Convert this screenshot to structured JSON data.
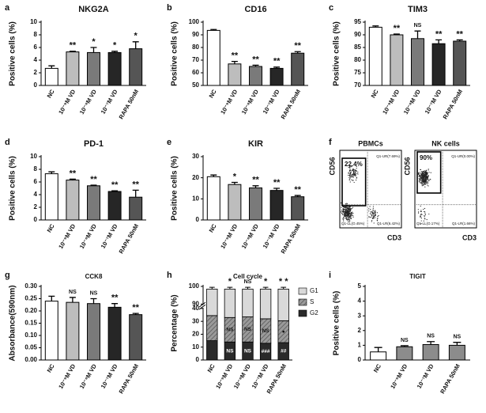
{
  "chart_data": [
    {
      "panel": "a",
      "type": "bar",
      "title": "NKG2A",
      "ylabel": "Positive cells (%)",
      "categories": [
        "NC",
        "10⁻⁹M VD",
        "10⁻⁸M VD",
        "10⁻⁷M VD",
        "RAPA 50nM"
      ],
      "values": [
        2.7,
        5.3,
        5.2,
        5.2,
        5.8
      ],
      "errors": [
        0.4,
        0.1,
        0.8,
        0.2,
        1.1
      ],
      "annotations": [
        null,
        "**",
        "*",
        "*",
        "*"
      ],
      "colors": [
        "#ffffff",
        "#bdbdbd",
        "#7a7a7a",
        "#262626",
        "#555555"
      ],
      "ylim": [
        0,
        10
      ],
      "yticks": [
        0,
        2,
        4,
        6,
        8,
        10
      ]
    },
    {
      "panel": "b",
      "type": "bar",
      "title": "CD16",
      "ylabel": "Positive cells (%)",
      "categories": [
        "NC",
        "10⁻⁹M VD",
        "10⁻⁸M VD",
        "10⁻⁷M VD",
        "RAPA 50nM"
      ],
      "values": [
        93.5,
        67,
        65,
        63.5,
        75.5
      ],
      "errors": [
        0.7,
        2,
        1,
        1,
        1.2
      ],
      "annotations": [
        null,
        "**",
        "**",
        "**",
        "**"
      ],
      "colors": [
        "#ffffff",
        "#bdbdbd",
        "#7a7a7a",
        "#262626",
        "#555555"
      ],
      "ylim": [
        50,
        100
      ],
      "yticks": [
        50,
        60,
        70,
        80,
        90,
        100
      ]
    },
    {
      "panel": "c",
      "type": "bar",
      "title": "TIM3",
      "ylabel": "Positive cells (%)",
      "categories": [
        "NC",
        "10⁻⁹M VD",
        "10⁻⁸M VD",
        "10⁻⁷M VD",
        "RAPA 50nM"
      ],
      "values": [
        93,
        90,
        88.5,
        86.5,
        87.5
      ],
      "errors": [
        0.5,
        0.3,
        3,
        1.5,
        0.5
      ],
      "annotations": [
        null,
        "**",
        "NS",
        "**",
        "**"
      ],
      "colors": [
        "#ffffff",
        "#bdbdbd",
        "#7a7a7a",
        "#262626",
        "#555555"
      ],
      "ylim": [
        70,
        95
      ],
      "yticks": [
        70,
        75,
        80,
        85,
        90,
        95
      ]
    },
    {
      "panel": "d",
      "type": "bar",
      "title": "PD-1",
      "ylabel": "Positive cells (%)",
      "categories": [
        "NC",
        "10⁻⁹M VD",
        "10⁻⁸M VD",
        "10⁻⁷M VD",
        "RAPA 50nM"
      ],
      "values": [
        7.3,
        6.3,
        5.4,
        4.5,
        3.6
      ],
      "errors": [
        0.3,
        0.15,
        0.1,
        0.1,
        1.1
      ],
      "annotations": [
        null,
        "**",
        "**",
        "**",
        "**"
      ],
      "colors": [
        "#ffffff",
        "#bdbdbd",
        "#7a7a7a",
        "#262626",
        "#555555"
      ],
      "ylim": [
        0,
        10
      ],
      "yticks": [
        0,
        2,
        4,
        6,
        8,
        10
      ]
    },
    {
      "panel": "e",
      "type": "bar",
      "title": "KIR",
      "ylabel": "Positive cells (%)",
      "categories": [
        "NC",
        "10⁻⁹M VD",
        "10⁻⁸M VD",
        "10⁻⁷M VD",
        "RAPA 50nM"
      ],
      "values": [
        20.5,
        16.8,
        15.2,
        14,
        11
      ],
      "errors": [
        0.8,
        1,
        1,
        1,
        0.6
      ],
      "annotations": [
        null,
        "*",
        "**",
        "**",
        "**"
      ],
      "colors": [
        "#ffffff",
        "#bdbdbd",
        "#7a7a7a",
        "#262626",
        "#555555"
      ],
      "ylim": [
        0,
        30
      ],
      "yticks": [
        0,
        10,
        20,
        30
      ]
    },
    {
      "panel": "g",
      "type": "bar",
      "title": "CCK8",
      "ylabel": "Absorbance(590nm)",
      "categories": [
        "NC",
        "10⁻⁹M VD",
        "10⁻⁸M VD",
        "10⁻⁷M VD",
        "RAPA 50nM"
      ],
      "values": [
        0.24,
        0.235,
        0.23,
        0.215,
        0.185
      ],
      "errors": [
        0.02,
        0.02,
        0.02,
        0.015,
        0.005
      ],
      "annotations": [
        null,
        "NS",
        "NS",
        "**",
        "**"
      ],
      "colors": [
        "#ffffff",
        "#bdbdbd",
        "#7a7a7a",
        "#262626",
        "#555555"
      ],
      "ylim": [
        0,
        0.3
      ],
      "yticks": [
        {
          "value": 0,
          "label": "0.00"
        },
        {
          "value": 0.05,
          "label": "0.05"
        },
        {
          "value": 0.1,
          "label": "0.10"
        },
        {
          "value": 0.15,
          "label": "0.15"
        },
        {
          "value": 0.2,
          "label": "0.20"
        },
        {
          "value": 0.25,
          "label": "0.25"
        },
        {
          "value": 0.3,
          "label": "0.30"
        }
      ]
    },
    {
      "panel": "h",
      "type": "stacked_bar",
      "title": "Cell cycle",
      "ylabel": "Percentage (%)",
      "categories": [
        "NC",
        "10⁻⁹M VD",
        "10⁻⁸M VD",
        "10⁻⁷M VD",
        "RAPA 50nM"
      ],
      "series": [
        {
          "name": "G2",
          "color": "#2a2a2a",
          "values": [
            15,
            14,
            14,
            13,
            13.5
          ],
          "annotations": [
            null,
            "NS",
            "NS",
            "###",
            "##"
          ]
        },
        {
          "name": "S",
          "color": "#9a9a9a",
          "hatch": true,
          "values": [
            19.5,
            19,
            19.5,
            19,
            17
          ],
          "annotations": [
            null,
            "NS",
            "NS",
            "NS",
            "●"
          ]
        },
        {
          "name": "G1",
          "color": "#d9d9d9",
          "values": [
            64,
            65.5,
            65,
            66.5,
            68
          ],
          "errors": [
            1,
            1,
            1,
            1,
            1
          ]
        }
      ],
      "annotations": [
        null,
        "*",
        "NS",
        "*",
        "* *"
      ],
      "ylim": [
        0,
        100
      ],
      "axis_break": [
        40,
        90
      ],
      "yticks": [
        0,
        10,
        20,
        30,
        40,
        90,
        100
      ]
    },
    {
      "panel": "i",
      "type": "bar",
      "title": "TIGIT",
      "ylabel": "Positive cells (%)",
      "categories": [
        "NC",
        "10⁻⁹M VD",
        "10⁻⁷M VD",
        "RAPA 50nM"
      ],
      "values": [
        0.55,
        0.9,
        1.05,
        1.0
      ],
      "errors": [
        0.3,
        0.07,
        0.2,
        0.2
      ],
      "annotations": [
        null,
        "NS",
        "NS",
        "NS"
      ],
      "colors": [
        "#ffffff",
        "#8c8c8c",
        "#8c8c8c",
        "#8c8c8c"
      ],
      "ylim": [
        0,
        5
      ],
      "yticks": [
        0,
        1,
        2,
        3,
        4,
        5
      ]
    }
  ],
  "flow_panel": {
    "panel": "f",
    "y_label": "CD56",
    "x_label": "CD3",
    "plots": [
      {
        "title": "PBMCs",
        "gate_label": "22.4%",
        "quadrants": [
          "Q1-UR(7.69%)",
          "Q1-LL(O.45%)",
          "Q1-LR(6.42%)"
        ]
      },
      {
        "title": "NK cells",
        "gate_label": "90%",
        "quadrants": [
          "Q1-UR(0.00%)",
          "Q1-LL(O.17%)",
          "Q1-LR(1.66%)"
        ]
      }
    ]
  }
}
